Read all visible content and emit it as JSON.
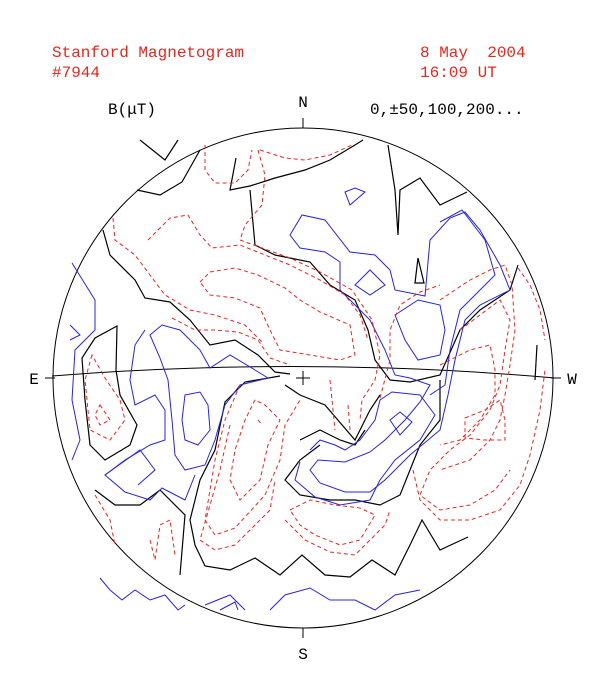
{
  "header": {
    "title": "Stanford Magnetogram",
    "id": "#7944",
    "date": "8 May  2004",
    "time": "16:09 UT"
  },
  "legend": {
    "unit": "B(μT)",
    "levels": "0,±50,100,200..."
  },
  "compass": {
    "n": "N",
    "s": "S",
    "e": "E",
    "w": "W"
  }
}
